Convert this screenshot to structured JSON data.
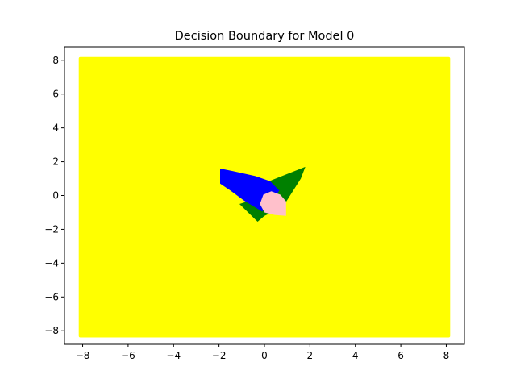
{
  "chart_data": {
    "type": "scatter",
    "title": "Decision Boundary for Model 0",
    "xlabel": "",
    "ylabel": "",
    "xlim": [
      -8.8,
      8.8
    ],
    "ylim": [
      -8.8,
      8.8
    ],
    "xticks": [
      -8,
      -6,
      -4,
      -2,
      0,
      2,
      4,
      6,
      8
    ],
    "yticks": [
      -8,
      -6,
      -4,
      -2,
      0,
      2,
      4,
      6,
      8
    ],
    "xtick_labels": [
      "−8",
      "−6",
      "−4",
      "−2",
      "0",
      "2",
      "4",
      "6",
      "8"
    ],
    "ytick_labels": [
      "−8",
      "−6",
      "−4",
      "−2",
      "0",
      "2",
      "4",
      "6",
      "8"
    ],
    "grid": false,
    "regions": [
      {
        "class": "background",
        "color": "#ffff00",
        "polygon": [
          [
            -8.1,
            8.1
          ],
          [
            8.1,
            8.1
          ],
          [
            8.1,
            -8.3
          ],
          [
            -8.1,
            -8.3
          ]
        ]
      },
      {
        "class": "green",
        "color": "#008000",
        "polygon": [
          [
            -0.4,
            -0.2
          ],
          [
            0.3,
            0.9
          ],
          [
            1.8,
            1.7
          ],
          [
            1.6,
            1.0
          ],
          [
            0.8,
            -0.7
          ],
          [
            0.0,
            -1.2
          ],
          [
            -0.3,
            -1.55
          ],
          [
            -1.1,
            -0.5
          ]
        ]
      },
      {
        "class": "blue",
        "color": "#0000ff",
        "polygon": [
          [
            -1.95,
            1.6
          ],
          [
            -1.4,
            1.45
          ],
          [
            -0.4,
            1.15
          ],
          [
            0.25,
            0.85
          ],
          [
            0.65,
            0.3
          ],
          [
            0.35,
            -0.35
          ],
          [
            -0.1,
            -0.95
          ],
          [
            -0.9,
            -0.3
          ],
          [
            -1.5,
            0.3
          ],
          [
            -1.95,
            0.7
          ]
        ]
      },
      {
        "class": "pink",
        "color": "#ffc0cb",
        "polygon": [
          [
            -0.2,
            -0.5
          ],
          [
            -0.05,
            0.05
          ],
          [
            0.3,
            0.25
          ],
          [
            0.7,
            0.05
          ],
          [
            0.95,
            -0.35
          ],
          [
            0.95,
            -1.2
          ],
          [
            0.45,
            -1.15
          ],
          [
            0.0,
            -1.0
          ]
        ]
      }
    ]
  }
}
